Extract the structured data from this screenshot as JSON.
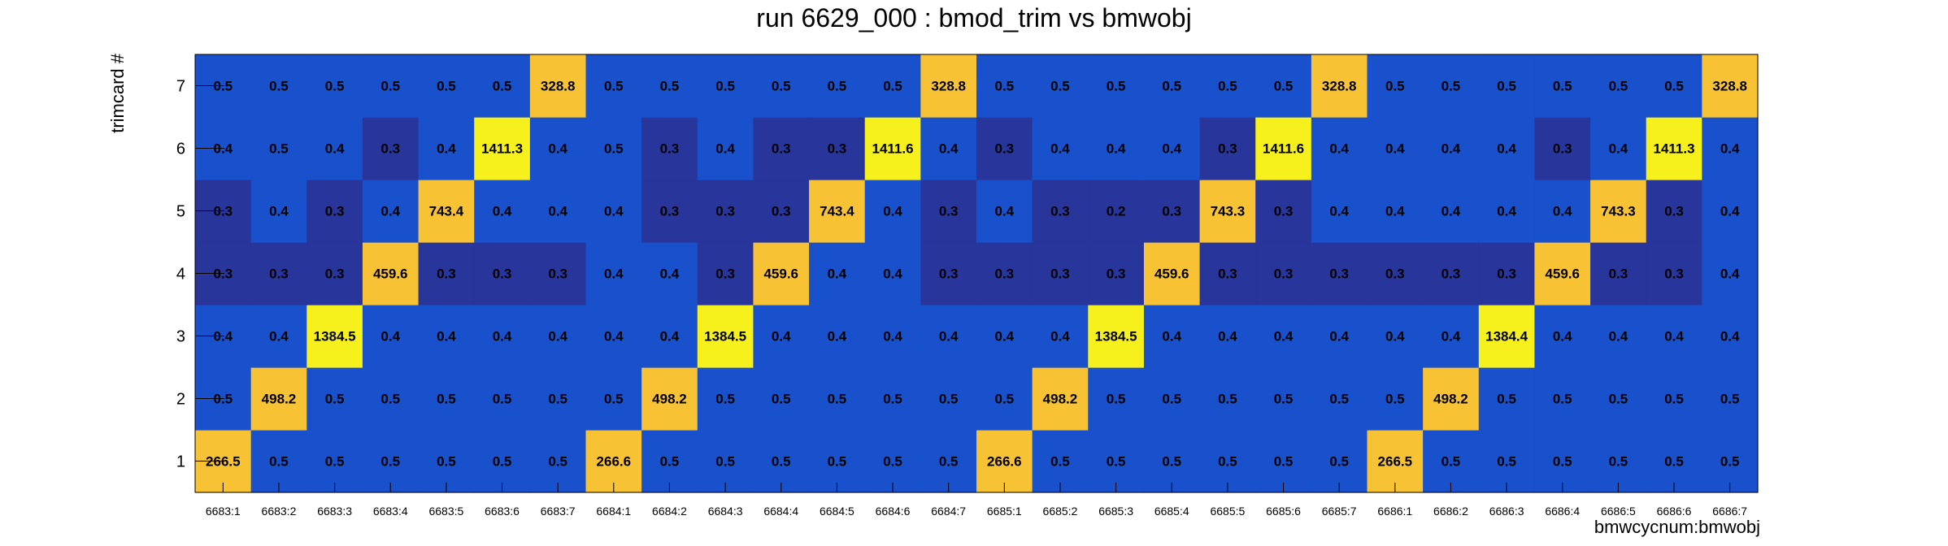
{
  "chart_data": {
    "type": "heatmap",
    "title": "run 6629_000 : bmod_trim vs bmwobj",
    "xlabel": "bmwcycnum:bmwobj",
    "ylabel": "trimcard #",
    "x_categories": [
      "6683:1",
      "6683:2",
      "6683:3",
      "6683:4",
      "6683:5",
      "6683:6",
      "6683:7",
      "6684:1",
      "6684:2",
      "6684:3",
      "6684:4",
      "6684:5",
      "6684:6",
      "6684:7",
      "6685:1",
      "6685:2",
      "6685:3",
      "6685:4",
      "6685:5",
      "6685:6",
      "6685:7",
      "6686:1",
      "6686:2",
      "6686:3",
      "6686:4",
      "6686:5",
      "6686:6",
      "6686:7"
    ],
    "y_categories": [
      "1",
      "2",
      "3",
      "4",
      "5",
      "6",
      "7"
    ],
    "values": [
      [
        "266.5",
        "0.5",
        "0.5",
        "0.5",
        "0.5",
        "0.5",
        "0.5",
        "266.6",
        "0.5",
        "0.5",
        "0.5",
        "0.5",
        "0.5",
        "0.5",
        "266.6",
        "0.5",
        "0.5",
        "0.5",
        "0.5",
        "0.5",
        "0.5",
        "266.5",
        "0.5",
        "0.5",
        "0.5",
        "0.5",
        "0.5",
        "0.5"
      ],
      [
        "0.5",
        "498.2",
        "0.5",
        "0.5",
        "0.5",
        "0.5",
        "0.5",
        "0.5",
        "498.2",
        "0.5",
        "0.5",
        "0.5",
        "0.5",
        "0.5",
        "0.5",
        "498.2",
        "0.5",
        "0.5",
        "0.5",
        "0.5",
        "0.5",
        "0.5",
        "498.2",
        "0.5",
        "0.5",
        "0.5",
        "0.5",
        "0.5"
      ],
      [
        "0.4",
        "0.4",
        "1384.5",
        "0.4",
        "0.4",
        "0.4",
        "0.4",
        "0.4",
        "0.4",
        "1384.5",
        "0.4",
        "0.4",
        "0.4",
        "0.4",
        "0.4",
        "0.4",
        "1384.5",
        "0.4",
        "0.4",
        "0.4",
        "0.4",
        "0.4",
        "0.4",
        "1384.4",
        "0.4",
        "0.4",
        "0.4",
        "0.4"
      ],
      [
        "0.3",
        "0.3",
        "0.3",
        "459.6",
        "0.3",
        "0.3",
        "0.3",
        "0.4",
        "0.4",
        "0.3",
        "459.6",
        "0.4",
        "0.4",
        "0.3",
        "0.3",
        "0.3",
        "0.3",
        "459.6",
        "0.3",
        "0.3",
        "0.3",
        "0.3",
        "0.3",
        "0.3",
        "459.6",
        "0.3",
        "0.3",
        "0.4"
      ],
      [
        "0.3",
        "0.4",
        "0.3",
        "0.4",
        "743.4",
        "0.4",
        "0.4",
        "0.4",
        "0.3",
        "0.3",
        "0.3",
        "743.4",
        "0.4",
        "0.3",
        "0.4",
        "0.3",
        "0.2",
        "0.3",
        "743.3",
        "0.3",
        "0.4",
        "0.4",
        "0.4",
        "0.4",
        "0.4",
        "743.3",
        "0.3",
        "0.4"
      ],
      [
        "0.4",
        "0.5",
        "0.4",
        "0.3",
        "0.4",
        "1411.3",
        "0.4",
        "0.5",
        "0.3",
        "0.4",
        "0.3",
        "0.3",
        "1411.6",
        "0.4",
        "0.3",
        "0.4",
        "0.4",
        "0.4",
        "0.3",
        "1411.6",
        "0.4",
        "0.4",
        "0.4",
        "0.4",
        "0.3",
        "0.4",
        "1411.3",
        "0.4"
      ],
      [
        "0.5",
        "0.5",
        "0.5",
        "0.5",
        "0.5",
        "0.5",
        "328.8",
        "0.5",
        "0.5",
        "0.5",
        "0.5",
        "0.5",
        "0.5",
        "328.8",
        "0.5",
        "0.5",
        "0.5",
        "0.5",
        "0.5",
        "0.5",
        "328.8",
        "0.5",
        "0.5",
        "0.5",
        "0.5",
        "0.5",
        "0.5",
        "328.8"
      ]
    ],
    "legend": "none",
    "grid": false,
    "colors": {
      "low_dark": "#28359b",
      "low_mid": "#1951cc",
      "peak_mid": "#f7c234",
      "peak_high": "#f6f01d"
    }
  }
}
